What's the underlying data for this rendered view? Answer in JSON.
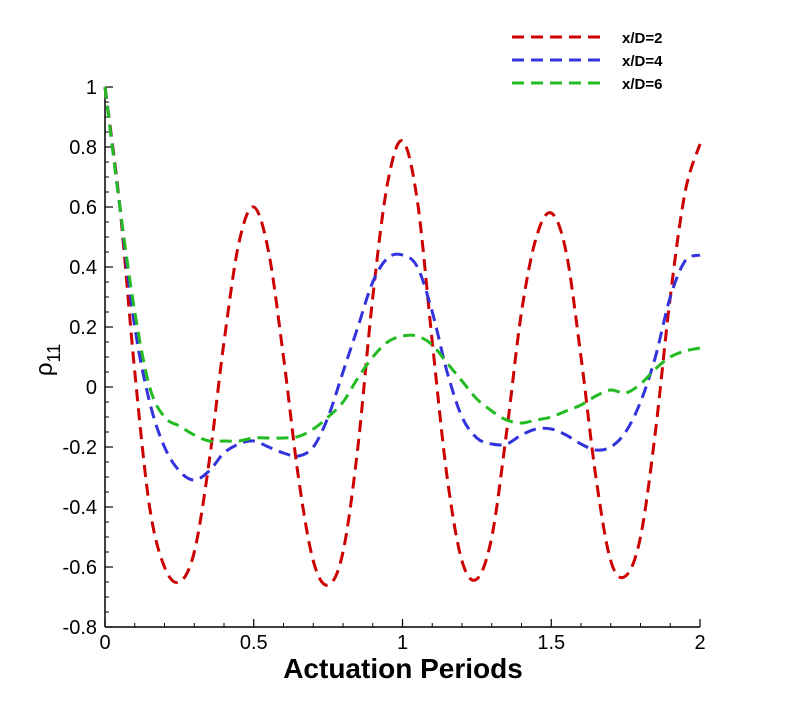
{
  "chart_data": {
    "type": "line",
    "title": "",
    "xlabel": "Actuation Periods",
    "ylabel": "ρ",
    "ylabel_subscript": "11",
    "xlim": [
      0,
      2
    ],
    "ylim": [
      -0.8,
      1
    ],
    "xticks": [
      0,
      0.5,
      1,
      1.5,
      2
    ],
    "xtick_labels": [
      "0",
      "0.5",
      "1",
      "1.5",
      "2"
    ],
    "yticks": [
      -0.8,
      -0.6,
      -0.4,
      -0.2,
      0,
      0.2,
      0.4,
      0.6,
      0.8,
      1
    ],
    "ytick_labels": [
      "-0.8",
      "-0.6",
      "-0.4",
      "-0.2",
      "0",
      "0.2",
      "0.4",
      "0.6",
      "0.8",
      "1"
    ],
    "grid": false,
    "legend_position": "top-right",
    "line_style": "dashed",
    "series": [
      {
        "name": "x/D=2",
        "color": "#cc0000",
        "x": [
          0,
          0.05,
          0.1,
          0.15,
          0.2,
          0.25,
          0.3,
          0.35,
          0.4,
          0.45,
          0.5,
          0.55,
          0.6,
          0.65,
          0.7,
          0.75,
          0.8,
          0.85,
          0.9,
          0.95,
          1.0,
          1.05,
          1.1,
          1.15,
          1.2,
          1.25,
          1.3,
          1.35,
          1.4,
          1.45,
          1.5,
          1.55,
          1.6,
          1.65,
          1.7,
          1.75,
          1.8,
          1.85,
          1.9,
          1.95,
          2.0
        ],
        "y": [
          1.0,
          0.6,
          0.05,
          -0.4,
          -0.6,
          -0.65,
          -0.55,
          -0.25,
          0.15,
          0.48,
          0.6,
          0.45,
          0.1,
          -0.3,
          -0.58,
          -0.66,
          -0.55,
          -0.2,
          0.3,
          0.68,
          0.82,
          0.62,
          0.15,
          -0.3,
          -0.58,
          -0.64,
          -0.5,
          -0.15,
          0.25,
          0.5,
          0.58,
          0.45,
          0.1,
          -0.3,
          -0.58,
          -0.63,
          -0.5,
          -0.15,
          0.3,
          0.65,
          0.81
        ]
      },
      {
        "name": "x/D=4",
        "color": "#3333dd",
        "x": [
          0,
          0.05,
          0.1,
          0.15,
          0.2,
          0.25,
          0.3,
          0.35,
          0.4,
          0.45,
          0.5,
          0.55,
          0.6,
          0.65,
          0.7,
          0.75,
          0.8,
          0.85,
          0.9,
          0.95,
          1.0,
          1.05,
          1.1,
          1.15,
          1.2,
          1.25,
          1.3,
          1.35,
          1.4,
          1.45,
          1.5,
          1.55,
          1.6,
          1.65,
          1.7,
          1.75,
          1.8,
          1.85,
          1.9,
          1.95,
          2.0
        ],
        "y": [
          1.0,
          0.6,
          0.2,
          -0.05,
          -0.2,
          -0.28,
          -0.31,
          -0.28,
          -0.22,
          -0.19,
          -0.18,
          -0.2,
          -0.22,
          -0.23,
          -0.2,
          -0.1,
          0.05,
          0.2,
          0.35,
          0.43,
          0.44,
          0.4,
          0.25,
          0.05,
          -0.1,
          -0.17,
          -0.19,
          -0.19,
          -0.16,
          -0.14,
          -0.14,
          -0.16,
          -0.19,
          -0.21,
          -0.2,
          -0.15,
          -0.05,
          0.1,
          0.3,
          0.42,
          0.44
        ]
      },
      {
        "name": "x/D=6",
        "color": "#22bb22",
        "x": [
          0,
          0.05,
          0.1,
          0.15,
          0.2,
          0.25,
          0.3,
          0.35,
          0.4,
          0.45,
          0.5,
          0.55,
          0.6,
          0.65,
          0.7,
          0.75,
          0.8,
          0.85,
          0.9,
          0.95,
          1.0,
          1.05,
          1.1,
          1.15,
          1.2,
          1.25,
          1.3,
          1.35,
          1.4,
          1.45,
          1.5,
          1.55,
          1.6,
          1.65,
          1.7,
          1.75,
          1.8,
          1.85,
          1.9,
          1.95,
          2.0
        ],
        "y": [
          1.0,
          0.6,
          0.25,
          0.0,
          -0.1,
          -0.13,
          -0.16,
          -0.18,
          -0.18,
          -0.18,
          -0.17,
          -0.17,
          -0.17,
          -0.165,
          -0.14,
          -0.1,
          -0.05,
          0.03,
          0.1,
          0.15,
          0.17,
          0.17,
          0.14,
          0.08,
          0.02,
          -0.04,
          -0.08,
          -0.11,
          -0.12,
          -0.11,
          -0.1,
          -0.08,
          -0.06,
          -0.03,
          -0.01,
          -0.02,
          0.01,
          0.06,
          0.1,
          0.12,
          0.13
        ]
      }
    ]
  }
}
